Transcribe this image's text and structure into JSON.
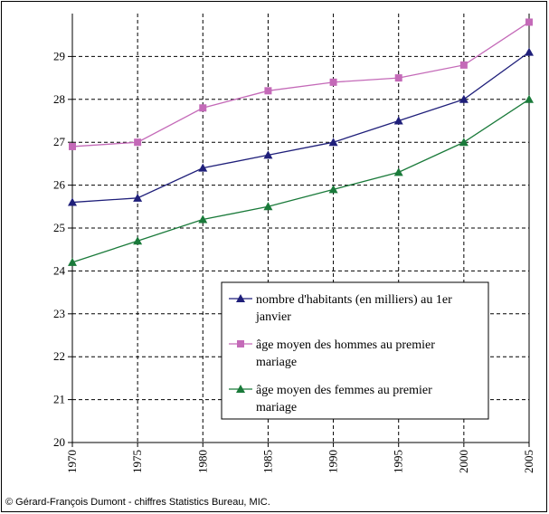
{
  "chart_data": {
    "type": "line",
    "x": [
      "1970",
      "1975",
      "1980",
      "1985",
      "1990",
      "1995",
      "2000",
      "2005"
    ],
    "ylim": [
      20,
      30
    ],
    "yticks": [
      "20",
      "21",
      "22",
      "23",
      "24",
      "25",
      "26",
      "27",
      "28",
      "29"
    ],
    "grid": true,
    "legend_position": "bottom-right",
    "series": [
      {
        "name": "nombre d'habitants (en milliers) au 1er janvier",
        "name_lines": [
          "nombre d'habitants (en milliers) au 1er",
          "janvier"
        ],
        "color": "#1f1f7a",
        "marker": "triangle",
        "values": [
          25.6,
          25.7,
          26.4,
          26.7,
          27.0,
          27.5,
          28.0,
          29.1
        ]
      },
      {
        "name": "âge moyen des hommes au premier mariage",
        "name_lines": [
          "âge moyen des hommes au premier",
          "mariage"
        ],
        "color": "#c46ab8",
        "marker": "square",
        "values": [
          26.9,
          27.0,
          27.8,
          28.2,
          28.4,
          28.5,
          28.8,
          29.8
        ]
      },
      {
        "name": "âge moyen des femmes au premier mariage",
        "name_lines": [
          "âge moyen des femmes au premier",
          "mariage"
        ],
        "color": "#1a7a3a",
        "marker": "triangle",
        "values": [
          24.2,
          24.7,
          25.2,
          25.5,
          25.9,
          26.3,
          27.0,
          28.0
        ]
      }
    ]
  },
  "credit": "© Gérard-François Dumont - chiffres Statistics Bureau, MIC."
}
